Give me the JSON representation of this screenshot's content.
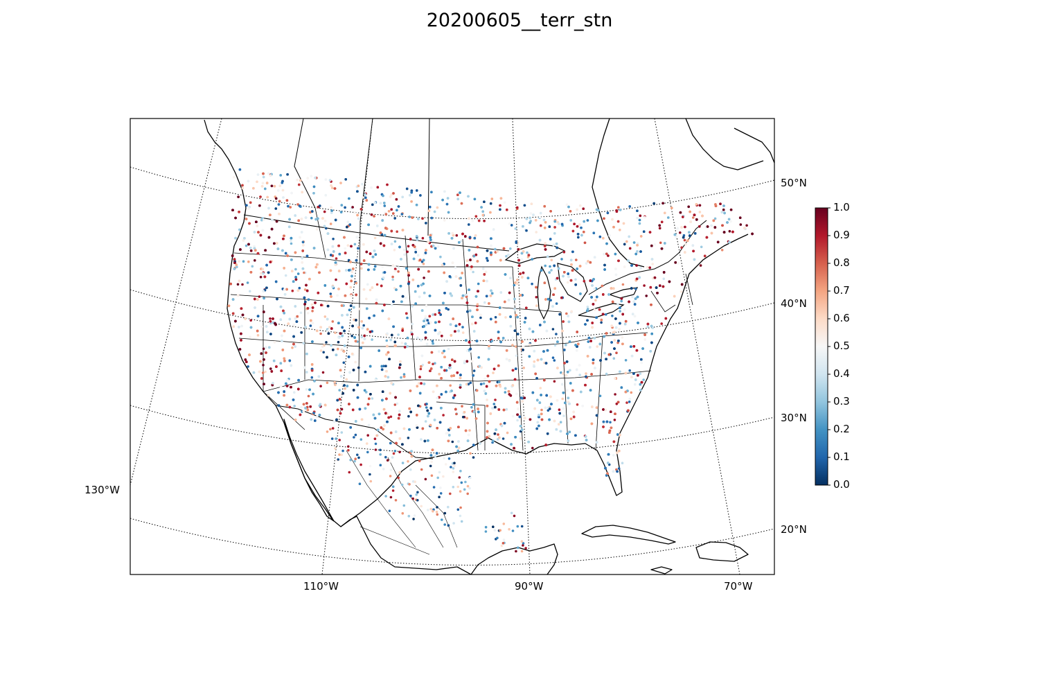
{
  "title": "20200605__terr_stn",
  "map": {
    "projection": "lambert-conformal",
    "lat_labels": [
      "50°N",
      "40°N",
      "30°N",
      "20°N"
    ],
    "lon_labels_bottom": [
      "110°W",
      "90°W",
      "70°W"
    ],
    "lon_label_left": "130°W",
    "graticule_style": "dotted"
  },
  "colorbar": {
    "colormap": "RdBu_r",
    "min": 0.0,
    "max": 1.0,
    "ticks": [
      "0.0",
      "0.1",
      "0.2",
      "0.3",
      "0.4",
      "0.5",
      "0.6",
      "0.7",
      "0.8",
      "0.9",
      "1.0"
    ],
    "colors": [
      "#053061",
      "#2166ac",
      "#4393c3",
      "#92c5de",
      "#d1e5f0",
      "#f7f7f7",
      "#fddbc7",
      "#f4a582",
      "#d6604d",
      "#b2182b",
      "#67001f"
    ]
  }
}
